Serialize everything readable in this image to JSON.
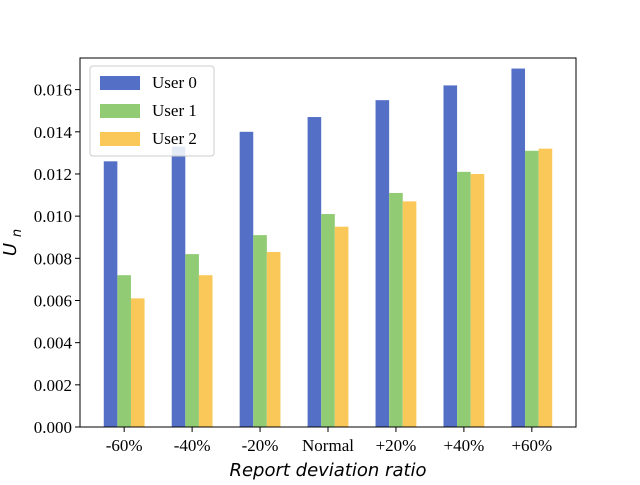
{
  "chart_data": {
    "type": "bar",
    "title": "",
    "xlabel": "Report deviation ratio",
    "ylabel": "U",
    "ylabel_subscript": "n",
    "categories": [
      "-60%",
      "-40%",
      "-20%",
      "Normal",
      "+20%",
      "+40%",
      "+60%"
    ],
    "ylim": [
      0,
      0.0175
    ],
    "yticks": [
      0.0,
      0.002,
      0.004,
      0.006,
      0.008,
      0.01,
      0.012,
      0.014,
      0.016
    ],
    "ytick_labels": [
      "0.000",
      "0.002",
      "0.004",
      "0.006",
      "0.008",
      "0.010",
      "0.012",
      "0.014",
      "0.016"
    ],
    "series": [
      {
        "name": "User 0",
        "color": "#5470c6",
        "values": [
          0.0126,
          0.0133,
          0.014,
          0.0147,
          0.0155,
          0.0162,
          0.017
        ]
      },
      {
        "name": "User 1",
        "color": "#91cc75",
        "values": [
          0.0072,
          0.0082,
          0.0091,
          0.0101,
          0.0111,
          0.0121,
          0.0131
        ]
      },
      {
        "name": "User 2",
        "color": "#fac858",
        "values": [
          0.0061,
          0.0072,
          0.0083,
          0.0095,
          0.0107,
          0.012,
          0.0132
        ]
      }
    ],
    "legend": {
      "placement": "top-left"
    },
    "grid": false
  }
}
